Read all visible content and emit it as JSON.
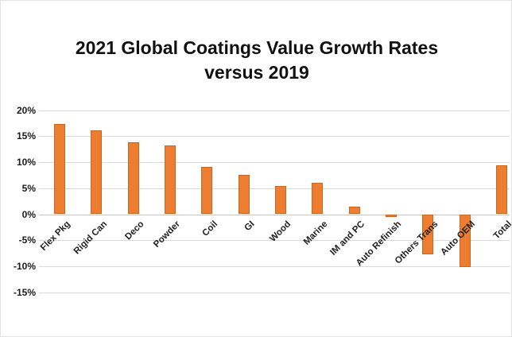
{
  "chart_data": {
    "type": "bar",
    "title": "2021 Global Coatings Value Growth Rates versus 2019",
    "title_lines": [
      "2021 Global Coatings Value Growth Rates",
      "versus 2019"
    ],
    "categories": [
      "Flex Pkg",
      "Rigid Can",
      "Deco",
      "Powder",
      "Coil",
      "GI",
      "Wood",
      "Marine",
      "IM and PC",
      "Auto Refinish",
      "Others Trans",
      "Auto OEM",
      "Total"
    ],
    "values": [
      17.3,
      16.1,
      13.8,
      13.2,
      9.1,
      7.5,
      5.4,
      6.0,
      1.4,
      -0.5,
      -7.7,
      -10.2,
      9.4
    ],
    "xlabel": "",
    "ylabel": "",
    "ylim": [
      -15,
      20
    ],
    "ytick_step": 5,
    "ytick_labels": [
      "20%",
      "15%",
      "10%",
      "5%",
      "0%",
      "-5%",
      "-10%",
      "-15%"
    ],
    "grid": true,
    "legend": "none",
    "bar_color": "#ED7D31",
    "bar_border_color": "#C9661F",
    "gridline_color": "#D9D9D9",
    "zero_line_color": "#C6C6C6",
    "title_color": "#111111",
    "background_color": "#FFFFFF"
  }
}
